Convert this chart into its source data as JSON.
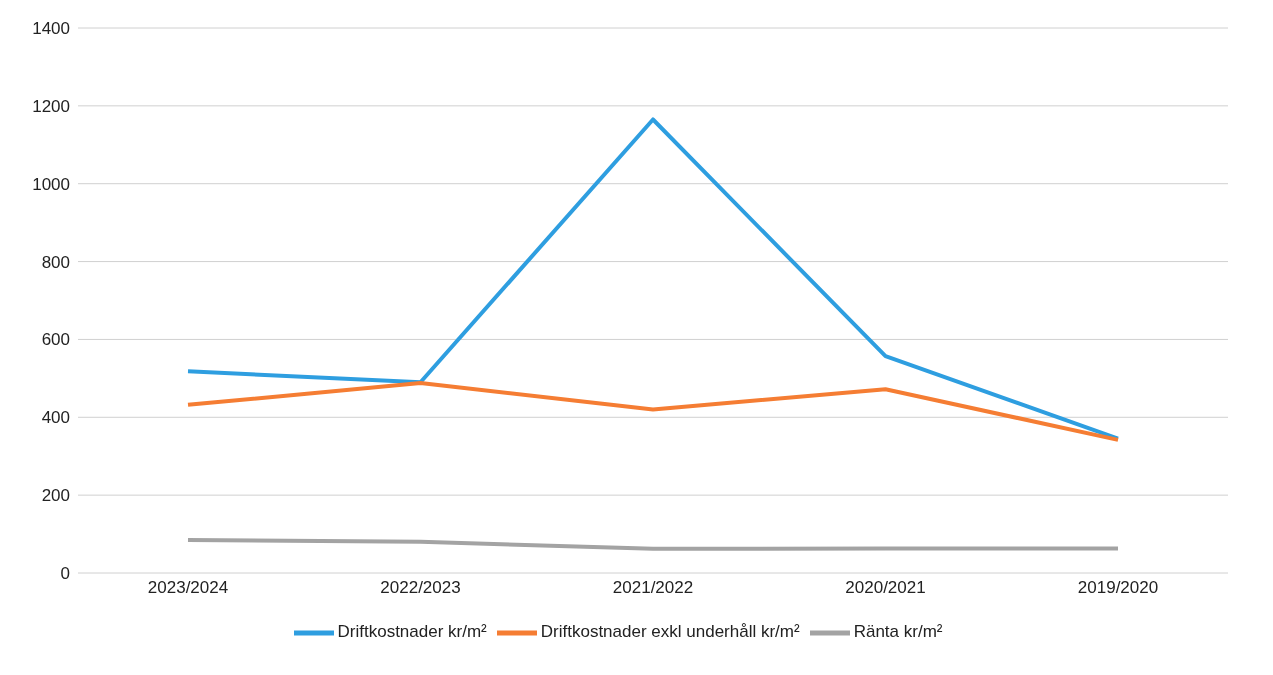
{
  "chart_data": {
    "type": "line",
    "categories": [
      "2023/2024",
      "2022/2023",
      "2021/2022",
      "2020/2021",
      "2019/2020"
    ],
    "series": [
      {
        "name": "Driftkostnader kr/m²",
        "color": "#2e9ee0",
        "values": [
          518,
          490,
          1165,
          557,
          345
        ]
      },
      {
        "name": "Driftkostnader exkl underhåll kr/m²",
        "color": "#f57d33",
        "values": [
          432,
          488,
          420,
          472,
          342
        ]
      },
      {
        "name": "Ränta kr/m²",
        "color": "#a3a3a3",
        "values": [
          85,
          80,
          62,
          63,
          63
        ]
      }
    ],
    "ylim": [
      0,
      1400
    ],
    "yticks": [
      0,
      200,
      400,
      600,
      800,
      1000,
      1200,
      1400
    ],
    "grid": "y",
    "legend": "bottom",
    "marker": "none",
    "line_style": "solid"
  }
}
